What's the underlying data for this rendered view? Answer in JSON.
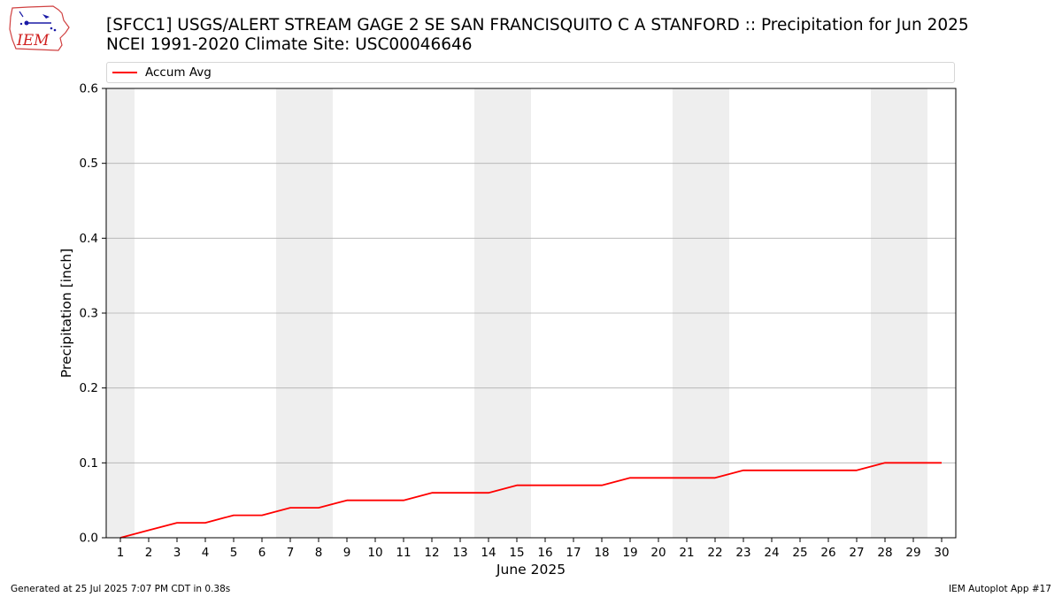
{
  "header": {
    "logo_text": "IEM",
    "title_line1": "[SFCC1] USGS/ALERT STREAM GAGE 2 SE SAN FRANCISQUITO C A STANFORD :: Precipitation for Jun 2025",
    "title_line2": "NCEI 1991-2020 Climate Site: USC00046646"
  },
  "footer": {
    "generated": "Generated at 25 Jul 2025 7:07 PM CDT in 0.38s",
    "app": "IEM Autoplot App #17"
  },
  "colors": {
    "series": "#ff0000",
    "weekend_band": "#eeeeee",
    "grid": "#b0b0b0"
  },
  "chart_data": {
    "type": "line",
    "title": "[SFCC1] USGS/ALERT STREAM GAGE 2 SE SAN FRANCISQUITO C A STANFORD :: Precipitation for Jun 2025",
    "xlabel": "June 2025",
    "ylabel": "Precipitation [inch]",
    "xlim": [
      0.5,
      30.5
    ],
    "ylim": [
      0,
      0.6
    ],
    "yticks": [
      0.0,
      0.1,
      0.2,
      0.3,
      0.4,
      0.5,
      0.6
    ],
    "ytick_labels": [
      "0.0",
      "0.1",
      "0.2",
      "0.3",
      "0.4",
      "0.5",
      "0.6"
    ],
    "x": [
      1,
      2,
      3,
      4,
      5,
      6,
      7,
      8,
      9,
      10,
      11,
      12,
      13,
      14,
      15,
      16,
      17,
      18,
      19,
      20,
      21,
      22,
      23,
      24,
      25,
      26,
      27,
      28,
      29,
      30
    ],
    "grid": "horizontal",
    "legend_position": "top",
    "shaded_days": [
      1,
      7,
      8,
      14,
      15,
      21,
      22,
      28,
      29
    ],
    "series": [
      {
        "name": "Accum Avg",
        "color": "#ff0000",
        "values": [
          0.0,
          0.01,
          0.02,
          0.02,
          0.03,
          0.03,
          0.04,
          0.04,
          0.05,
          0.05,
          0.05,
          0.06,
          0.06,
          0.06,
          0.07,
          0.07,
          0.07,
          0.07,
          0.08,
          0.08,
          0.08,
          0.08,
          0.09,
          0.09,
          0.09,
          0.09,
          0.09,
          0.1,
          0.1,
          0.1
        ]
      }
    ]
  }
}
